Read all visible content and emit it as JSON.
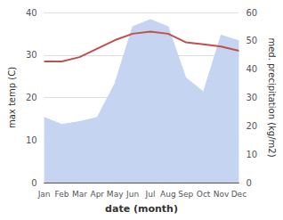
{
  "chart_data": {
    "type": "line",
    "categories": [
      "Jan",
      "Feb",
      "Mar",
      "Apr",
      "May",
      "Jun",
      "Jul",
      "Aug",
      "Sep",
      "Oct",
      "Nov",
      "Dec"
    ],
    "series": [
      {
        "type": "area",
        "axis": "y2",
        "color": "#c5d4f0",
        "values": [
          23.0,
          20.5,
          21.5,
          23.0,
          35.0,
          55.0,
          57.5,
          55.0,
          37.0,
          32.0,
          52.0,
          50.0
        ]
      },
      {
        "type": "line",
        "color": "#c0504d",
        "values": [
          28.5,
          28.5,
          29.5,
          31.5,
          33.5,
          35.0,
          35.5,
          35.0,
          33.0,
          32.5,
          32.0,
          31.0
        ]
      }
    ],
    "xlabel": "date (month)",
    "ylabel": "max temp (C)",
    "y2label": "med. precipitation (kg/m2)",
    "ylim": [
      0,
      40
    ],
    "yticks": [
      0,
      10,
      20,
      30,
      40
    ],
    "y2lim": [
      0,
      60
    ],
    "y2ticks": [
      0,
      10,
      20,
      30,
      40,
      50,
      60
    ],
    "grid": true
  }
}
